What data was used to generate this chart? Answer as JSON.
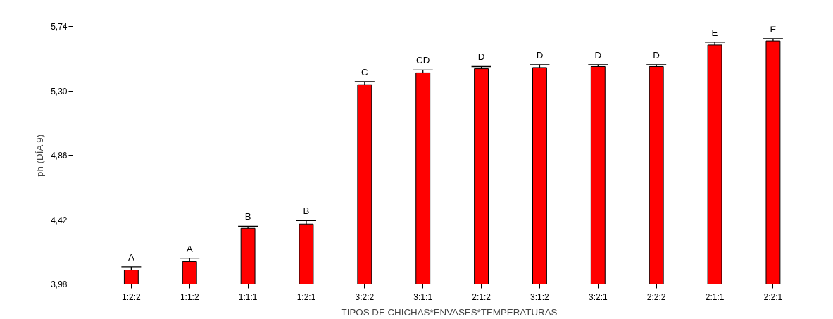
{
  "chart_data": {
    "type": "bar",
    "xlabel": "TIPOS DE CHICHAS*ENVASES*TEMPERATURAS",
    "ylabel": "ph (DÍA 9)",
    "categories": [
      "1:2:2",
      "1:1:2",
      "1:1:1",
      "1:2:1",
      "3:2:2",
      "3:1:1",
      "2:1:2",
      "3:1:2",
      "3:2:1",
      "2:2:2",
      "2:1:1",
      "2:2:1"
    ],
    "values": [
      4.076,
      4.134,
      4.361,
      4.39,
      5.342,
      5.423,
      5.451,
      5.459,
      5.466,
      5.466,
      5.613,
      5.641
    ],
    "errors": [
      0.022,
      0.023,
      0.014,
      0.023,
      0.021,
      0.019,
      0.015,
      0.02,
      0.013,
      0.013,
      0.02,
      0.015
    ],
    "color": "#ff0000",
    "ylim": [
      3.98,
      5.74
    ],
    "yticks": [
      {
        "value": 3.98,
        "label": "3,98"
      },
      {
        "value": 4.42,
        "label": "4,42"
      },
      {
        "value": 4.86,
        "label": "4,86"
      },
      {
        "value": 5.3,
        "label": "5,30"
      },
      {
        "value": 5.74,
        "label": "5,74"
      }
    ],
    "grid": false,
    "annotations": [
      {
        "text": "A",
        "x": "1:2:2",
        "y": 4.098
      },
      {
        "text": "A",
        "x": "1:1:2",
        "y": 4.157
      },
      {
        "text": "B",
        "x": "1:1:1",
        "y": 4.375
      },
      {
        "text": "B",
        "x": "1:2:1",
        "y": 4.413
      },
      {
        "text": "C",
        "x": "3:2:2",
        "y": 5.363
      },
      {
        "text": "CD",
        "x": "3:1:1",
        "y": 5.442
      },
      {
        "text": "D",
        "x": "2:1:2",
        "y": 5.466
      },
      {
        "text": "D",
        "x": "3:1:2",
        "y": 5.479
      },
      {
        "text": "D",
        "x": "3:2:1",
        "y": 5.479
      },
      {
        "text": "D",
        "x": "2:2:2",
        "y": 5.479
      },
      {
        "text": "E",
        "x": "2:1:1",
        "y": 5.633
      },
      {
        "text": "E",
        "x": "2:2:1",
        "y": 5.656
      }
    ]
  }
}
